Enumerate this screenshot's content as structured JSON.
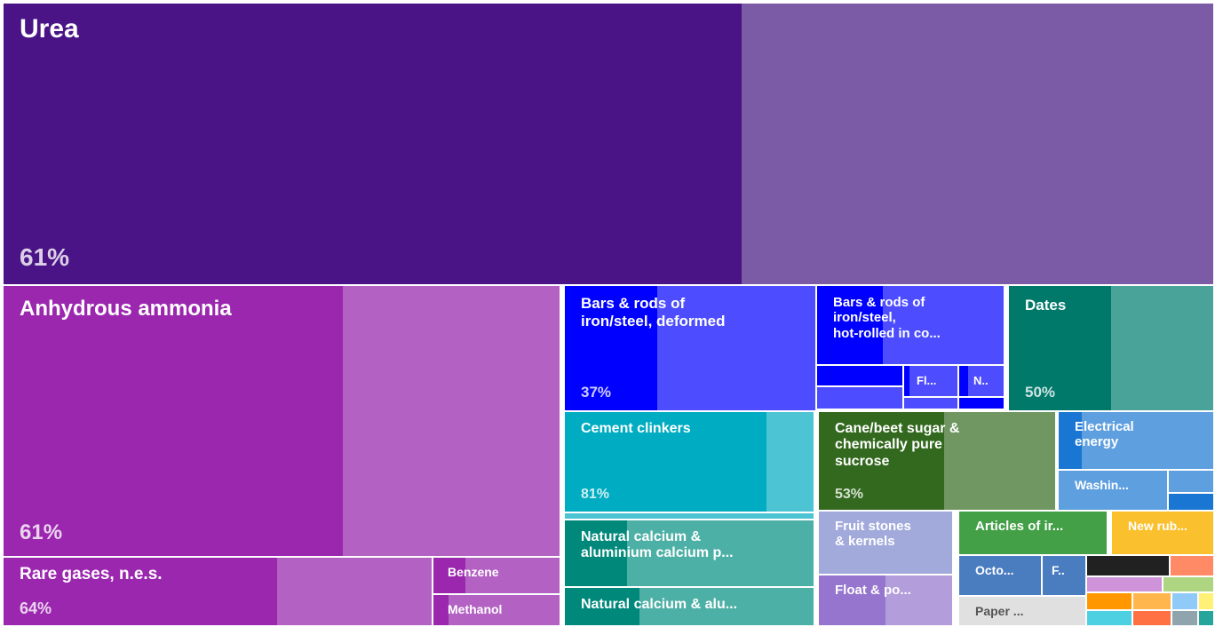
{
  "chart_data": {
    "type": "treemap",
    "items": [
      {
        "id": "urea",
        "label": "Urea",
        "percent_label": "61%",
        "share": 0.61,
        "color": "#4a1486",
        "light": "#7b5aa6"
      },
      {
        "id": "anhydrous-ammonia",
        "label": "Anhydrous ammonia",
        "percent_label": "61%",
        "share": 0.61,
        "color": "#9b27af",
        "light": "#b362c3"
      },
      {
        "id": "rare-gases",
        "label": "Rare gases, n.e.s.",
        "percent_label": "64%",
        "share": 0.64,
        "color": "#9b27af",
        "light": "#b362c3"
      },
      {
        "id": "benzene",
        "label": "Benzene",
        "share": 0.25,
        "color": "#9b27af",
        "light": "#b362c3"
      },
      {
        "id": "methanol",
        "label": "Methanol",
        "share": 0.12,
        "color": "#9b27af",
        "light": "#b362c3"
      },
      {
        "id": "bars-deformed",
        "label": "Bars & rods of\niron/steel, deformed",
        "percent_label": "37%",
        "share": 0.37,
        "color": "#0000ff",
        "light": "#4d4dff"
      },
      {
        "id": "bars-hot-rolled",
        "label": "Bars & rods of\niron/steel,\nhot-rolled in co...",
        "share": 0.35,
        "color": "#0000ff",
        "light": "#4d4dff"
      },
      {
        "id": "fl",
        "label": "Fl...",
        "share": 0.1,
        "color": "#0000ff",
        "light": "#4d4dff"
      },
      {
        "id": "n",
        "label": "N..",
        "share": 0.2,
        "color": "#0000ff",
        "light": "#4d4dff"
      },
      {
        "id": "dates",
        "label": "Dates",
        "percent_label": "50%",
        "share": 0.5,
        "color": "#00796b",
        "light": "#4aa399"
      },
      {
        "id": "cement-clinkers",
        "label": "Cement clinkers",
        "percent_label": "81%",
        "share": 0.81,
        "color": "#00acc1",
        "light": "#4cc4d3"
      },
      {
        "id": "cane-sugar",
        "label": "Cane/beet sugar &\nchemically pure\nsucrose",
        "percent_label": "53%",
        "share": 0.53,
        "color": "#33691e",
        "light": "#709661"
      },
      {
        "id": "electrical-energy",
        "label": "Electrical\nenergy",
        "share": 0.15,
        "color": "#1976d2",
        "light": "#5e9fe0"
      },
      {
        "id": "washin",
        "label": "Washin...",
        "share": 0.0,
        "color": "#1976d2",
        "light": "#5e9fe0"
      },
      {
        "id": "natural-calcium-1",
        "label": "Natural calcium &\naluminium calcium p...",
        "share": 0.25,
        "color": "#00897b",
        "light": "#4db0a6"
      },
      {
        "id": "natural-calcium-2",
        "label": "Natural calcium & alu...",
        "share": 0.3,
        "color": "#00897b",
        "light": "#4db0a6"
      },
      {
        "id": "fruit-stones",
        "label": "Fruit stones\n& kernels",
        "share": 0.0,
        "color": "#7986cb",
        "light": "#a1aadb"
      },
      {
        "id": "float",
        "label": "Float & po...",
        "share": 0.5,
        "color": "#9575cd",
        "light": "#b39ddb"
      },
      {
        "id": "articles-iron",
        "label": "Articles of ir...",
        "share": 0.03,
        "color": "#43a047",
        "light": "#43a047"
      },
      {
        "id": "octo",
        "label": "Octo...",
        "share": 0.0,
        "color": "#1e5aa8",
        "light": "#4a7cc0"
      },
      {
        "id": "f",
        "label": "F..",
        "share": 0.0,
        "color": "#4a7cc0",
        "light": "#4a7cc0"
      },
      {
        "id": "paper",
        "label": "Paper ...",
        "share": 0.0,
        "color": "#e0e0e0",
        "light": "#e0e0e0"
      },
      {
        "id": "new-rubber",
        "label": "New rub...",
        "share": 0.0,
        "color": "#fbc02d",
        "light": "#fbc02d"
      }
    ]
  }
}
